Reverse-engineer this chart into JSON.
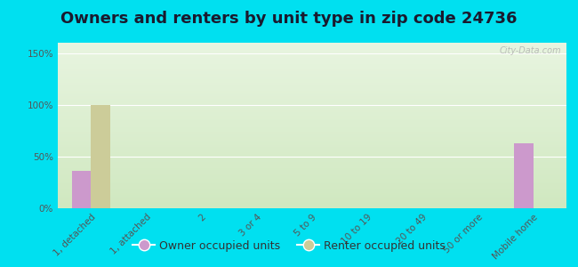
{
  "title": "Owners and renters by unit type in zip code 24736",
  "categories": [
    "1, detached",
    "1, attached",
    "2",
    "3 or 4",
    "5 to 9",
    "10 to 19",
    "20 to 49",
    "50 or more",
    "Mobile home"
  ],
  "owner_values": [
    36,
    0,
    0,
    0,
    0,
    0,
    0,
    0,
    63
  ],
  "renter_values": [
    100,
    0,
    0,
    0,
    0,
    0,
    0,
    0,
    0
  ],
  "owner_color": "#cc99cc",
  "renter_color": "#cccc99",
  "background_outer": "#00e0f0",
  "background_plot_top": "#e8f5e0",
  "background_plot_bottom": "#d8ecc8",
  "ylim": [
    0,
    160
  ],
  "yticks": [
    0,
    50,
    100,
    150
  ],
  "ytick_labels": [
    "0%",
    "50%",
    "100%",
    "150%"
  ],
  "bar_width": 0.35,
  "watermark": "City-Data.com",
  "legend_owner": "Owner occupied units",
  "legend_renter": "Renter occupied units",
  "title_fontsize": 13,
  "tick_fontsize": 7.5,
  "legend_fontsize": 9,
  "title_color": "#1a1a2e"
}
